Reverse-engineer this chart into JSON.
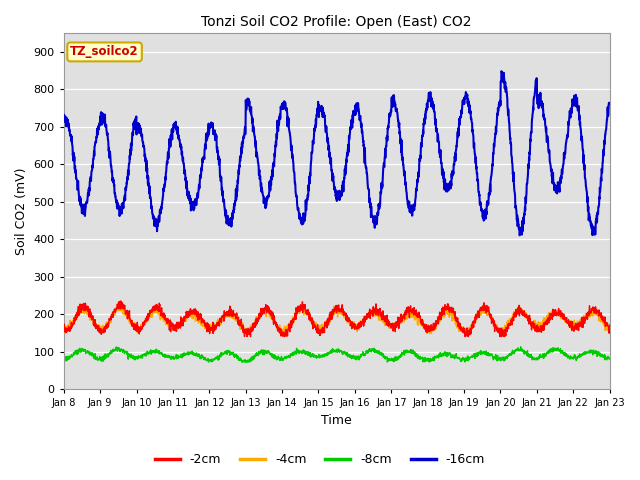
{
  "title": "Tonzi Soil CO2 Profile: Open (East) CO2",
  "xlabel": "Time",
  "ylabel": "Soil CO2 (mV)",
  "ylim": [
    0,
    950
  ],
  "yticks": [
    0,
    100,
    200,
    300,
    400,
    500,
    600,
    700,
    800,
    900
  ],
  "xlim_days": 15,
  "xtick_labels": [
    "Jan 8",
    "Jan 9",
    "Jan 10",
    "Jan 11",
    "Jan 12",
    "Jan 13",
    "Jan 14",
    "Jan 15",
    "Jan 16",
    "Jan 17",
    "Jan 18",
    "Jan 19",
    "Jan 20",
    "Jan 21",
    "Jan 22",
    "Jan 23"
  ],
  "label_box_text": "TZ_soilco2",
  "label_box_color": "#ffffcc",
  "label_box_border": "#ccaa00",
  "label_text_color": "#cc0000",
  "colors": {
    "minus2cm": "#ff0000",
    "minus4cm": "#ffaa00",
    "minus8cm": "#00cc00",
    "minus16cm": "#0000cc"
  },
  "legend_labels": [
    "-2cm",
    "-4cm",
    "-8cm",
    "-16cm"
  ],
  "background_color": "#ffffff",
  "plot_bg_color": "#e0e0e0",
  "grid_color": "#ffffff",
  "figsize": [
    6.4,
    4.8
  ],
  "dpi": 100,
  "title_fontsize": 10,
  "axis_label_fontsize": 9,
  "tick_fontsize": 8,
  "xtick_fontsize": 7,
  "legend_fontsize": 9
}
